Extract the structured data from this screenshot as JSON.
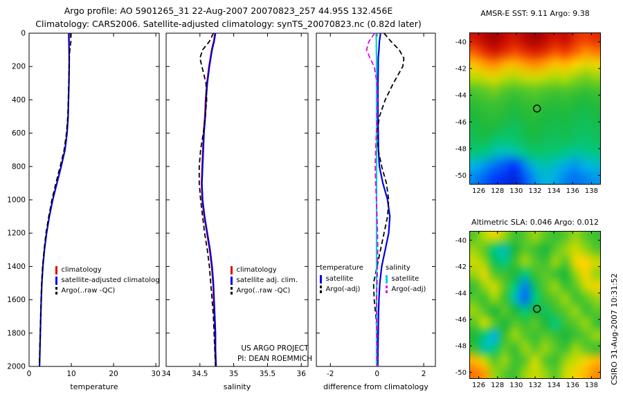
{
  "header": {
    "line1": "Argo profile: AO 5901265_31 22-Aug-2007 20070823_257 44.95S 132.456E",
    "line2": "Climatology: CARS2006. Satellite-adjusted climatology: synTS_20070823.nc (0.82d later)"
  },
  "annotations": {
    "project_line1": "US ARGO PROJECT",
    "project_line2": "PI: DEAN ROEMMICH",
    "timestamp_vertical": "CSIRO 31-Aug-2007 10:31:52"
  },
  "chart_data": [
    {
      "id": "temperature-profile",
      "type": "line",
      "xlabel": "temperature",
      "xlim": [
        0,
        30.8
      ],
      "xticks": [
        0,
        10,
        20,
        30
      ],
      "ylim": [
        0,
        2000
      ],
      "yticks": [
        0,
        200,
        400,
        600,
        800,
        1000,
        1200,
        1400,
        1600,
        1800,
        2000
      ],
      "depths": [
        0,
        50,
        100,
        150,
        200,
        300,
        400,
        500,
        600,
        700,
        800,
        900,
        1000,
        1100,
        1200,
        1300,
        1400,
        1500,
        1600,
        1700,
        1800,
        1900,
        2000
      ],
      "series": [
        {
          "name": "climatology",
          "color": "#e00000",
          "style": "solid",
          "width": 1.5,
          "values": [
            9.3,
            9.35,
            9.4,
            9.45,
            9.45,
            9.4,
            9.3,
            9.2,
            8.95,
            8.45,
            7.55,
            6.55,
            5.55,
            4.75,
            4.1,
            3.6,
            3.25,
            3.0,
            2.85,
            2.75,
            2.65,
            2.55,
            2.45
          ]
        },
        {
          "name": "satellite-adjusted climatology",
          "color": "#0000dd",
          "style": "solid",
          "width": 2.2,
          "values": [
            9.45,
            9.45,
            9.48,
            9.5,
            9.5,
            9.44,
            9.34,
            9.24,
            9.0,
            8.5,
            7.6,
            6.6,
            5.6,
            4.8,
            4.14,
            3.64,
            3.28,
            3.03,
            2.88,
            2.77,
            2.67,
            2.57,
            2.47
          ]
        },
        {
          "name": "Argo raw -QC",
          "color": "#000000",
          "style": "dashed",
          "width": 1.8,
          "values": [
            9.85,
            9.9,
            9.65,
            9.5,
            9.45,
            9.38,
            9.28,
            9.15,
            8.85,
            8.3,
            7.35,
            6.35,
            5.4,
            4.65,
            4.0,
            3.55,
            3.2,
            2.97,
            2.83,
            2.73,
            2.63,
            2.53,
            2.45
          ]
        }
      ],
      "legend": [
        {
          "label": "climatology",
          "color": "#e00000",
          "style": "solid"
        },
        {
          "label": "satellite-adjusted climatology",
          "color": "#0000dd",
          "style": "solid"
        },
        {
          "label": "Argo(..raw -QC)",
          "color": "#000000",
          "style": "dashed"
        }
      ]
    },
    {
      "id": "salinity-profile",
      "type": "line",
      "xlabel": "salinity",
      "xlim": [
        34,
        36.1
      ],
      "xticks": [
        34,
        34.5,
        35,
        35.5,
        36
      ],
      "ylim": [
        0,
        2000
      ],
      "yticks": [
        0,
        200,
        400,
        600,
        800,
        1000,
        1200,
        1400,
        1600,
        1800,
        2000
      ],
      "depths": [
        0,
        50,
        100,
        150,
        200,
        300,
        400,
        500,
        600,
        700,
        800,
        900,
        1000,
        1100,
        1200,
        1300,
        1400,
        1500,
        1600,
        1700,
        1800,
        1900,
        2000
      ],
      "series": [
        {
          "name": "climatology",
          "color": "#e00000",
          "style": "solid",
          "width": 1.5,
          "values": [
            34.72,
            34.7,
            34.67,
            34.65,
            34.63,
            34.6,
            34.58,
            34.57,
            34.55,
            34.54,
            34.53,
            34.52,
            34.53,
            34.56,
            34.6,
            34.64,
            34.67,
            34.69,
            34.7,
            34.71,
            34.72,
            34.72,
            34.73
          ]
        },
        {
          "name": "satellite adj. clim.",
          "color": "#0000dd",
          "style": "solid",
          "width": 2.2,
          "values": [
            34.73,
            34.71,
            34.68,
            34.66,
            34.64,
            34.61,
            34.59,
            34.58,
            34.56,
            34.55,
            34.54,
            34.53,
            34.54,
            34.57,
            34.61,
            34.65,
            34.68,
            34.7,
            34.71,
            34.72,
            34.73,
            34.73,
            34.74
          ]
        },
        {
          "name": "Argo raw -QC",
          "color": "#000000",
          "style": "dashed",
          "width": 1.8,
          "values": [
            34.7,
            34.64,
            34.54,
            34.5,
            34.53,
            34.59,
            34.6,
            34.58,
            34.55,
            34.51,
            34.49,
            34.49,
            34.51,
            34.54,
            34.57,
            34.61,
            34.64,
            34.66,
            34.68,
            34.7,
            34.71,
            34.72,
            34.73
          ]
        }
      ],
      "legend": [
        {
          "label": "climatology",
          "color": "#e00000",
          "style": "solid"
        },
        {
          "label": "satellite adj. clim.",
          "color": "#0000dd",
          "style": "solid"
        },
        {
          "label": "Argo(..raw -QC)",
          "color": "#000000",
          "style": "dashed"
        }
      ]
    },
    {
      "id": "difference-profile",
      "type": "line",
      "xlabel": "difference from climatology",
      "xlim": [
        -2.6,
        2.5
      ],
      "xticks": [
        -2,
        0,
        2
      ],
      "ylim": [
        0,
        2000
      ],
      "yticks": [
        0,
        200,
        400,
        600,
        800,
        1000,
        1200,
        1400,
        1600,
        1800,
        2000
      ],
      "depths": [
        0,
        50,
        100,
        150,
        200,
        300,
        400,
        500,
        600,
        700,
        800,
        900,
        1000,
        1100,
        1200,
        1300,
        1400,
        1500,
        1600,
        1700,
        1800,
        1900,
        2000
      ],
      "series": [
        {
          "name": "temperature satellite",
          "color": "#0000dd",
          "style": "solid",
          "width": 2.2,
          "values": [
            0.15,
            0.1,
            0.08,
            0.05,
            0.05,
            0.04,
            0.04,
            0.04,
            0.05,
            0.06,
            0.1,
            0.25,
            0.45,
            0.55,
            0.5,
            0.35,
            0.2,
            0.12,
            0.08,
            0.06,
            0.05,
            0.04,
            0.03
          ]
        },
        {
          "name": "temperature Argo -adj",
          "color": "#000000",
          "style": "dashed",
          "width": 1.8,
          "values": [
            0.3,
            0.6,
            0.95,
            1.15,
            1.1,
            0.7,
            0.35,
            0.1,
            0.0,
            0.05,
            0.2,
            0.4,
            0.5,
            0.45,
            0.3,
            0.15,
            0.0,
            -0.15,
            -0.12,
            -0.05,
            0.0,
            0.0,
            0.0
          ]
        },
        {
          "name": "salinity satellite",
          "color": "#00ccdd",
          "style": "solid",
          "width": 2.2,
          "values": [
            -0.04,
            -0.03,
            -0.03,
            -0.02,
            -0.02,
            -0.02,
            -0.02,
            -0.02,
            -0.02,
            -0.02,
            -0.02,
            -0.02,
            -0.02,
            -0.02,
            -0.02,
            -0.02,
            -0.02,
            -0.02,
            -0.02,
            -0.02,
            -0.02,
            -0.02,
            -0.02
          ]
        },
        {
          "name": "salinity Argo -adj",
          "color": "#e000e0",
          "style": "dashed",
          "width": 1.8,
          "values": [
            -0.1,
            -0.35,
            -0.45,
            -0.3,
            -0.12,
            0.0,
            0.02,
            0.0,
            -0.03,
            -0.06,
            -0.08,
            -0.06,
            -0.03,
            0.0,
            0.02,
            0.03,
            0.02,
            0.0,
            -0.02,
            -0.02,
            -0.01,
            0.0,
            0.0
          ]
        }
      ],
      "legend": {
        "columns": [
          {
            "header": "temperature",
            "items": [
              {
                "label": "satellite",
                "color": "#0000dd",
                "style": "solid"
              },
              {
                "label": "Argo(-adj)",
                "color": "#000000",
                "style": "dashed"
              }
            ]
          },
          {
            "header": "salinity",
            "items": [
              {
                "label": "satellite",
                "color": "#00ccdd",
                "style": "solid"
              },
              {
                "label": "Argo(-adj)",
                "color": "#e000e0",
                "style": "dashed"
              }
            ]
          }
        ]
      }
    },
    {
      "id": "sst-map",
      "type": "heatmap",
      "title": "AMSR-E SST: 9.11 Argo: 9.38",
      "colormap": "jet",
      "xlim": [
        125,
        139
      ],
      "ylim": [
        -39.3,
        -50.7
      ],
      "xticks": [
        126,
        128,
        130,
        132,
        134,
        136,
        138
      ],
      "yticks": [
        -40,
        -42,
        -44,
        -46,
        -48,
        -50
      ],
      "marker": {
        "lon": 132.2,
        "lat": -45.0
      },
      "grid": [
        [
          0.93,
          0.96,
          0.98,
          0.95,
          0.93,
          0.96,
          0.98,
          0.96,
          0.93,
          0.95,
          0.9,
          0.88,
          0.9
        ],
        [
          0.85,
          0.9,
          0.93,
          0.9,
          0.87,
          0.9,
          0.92,
          0.9,
          0.86,
          0.88,
          0.84,
          0.8,
          0.82
        ],
        [
          0.74,
          0.78,
          0.8,
          0.76,
          0.75,
          0.78,
          0.8,
          0.77,
          0.74,
          0.75,
          0.72,
          0.68,
          0.7
        ],
        [
          0.63,
          0.66,
          0.68,
          0.64,
          0.62,
          0.65,
          0.66,
          0.64,
          0.62,
          0.63,
          0.6,
          0.58,
          0.6
        ],
        [
          0.54,
          0.56,
          0.58,
          0.55,
          0.53,
          0.55,
          0.56,
          0.54,
          0.53,
          0.54,
          0.52,
          0.5,
          0.52
        ],
        [
          0.48,
          0.5,
          0.51,
          0.49,
          0.47,
          0.49,
          0.5,
          0.48,
          0.47,
          0.48,
          0.46,
          0.45,
          0.47
        ],
        [
          0.45,
          0.47,
          0.48,
          0.46,
          0.44,
          0.46,
          0.47,
          0.45,
          0.44,
          0.45,
          0.43,
          0.42,
          0.44
        ],
        [
          0.43,
          0.45,
          0.44,
          0.42,
          0.4,
          0.43,
          0.45,
          0.43,
          0.42,
          0.43,
          0.41,
          0.4,
          0.42
        ],
        [
          0.41,
          0.42,
          0.38,
          0.36,
          0.38,
          0.41,
          0.43,
          0.41,
          0.4,
          0.41,
          0.39,
          0.38,
          0.4
        ],
        [
          0.36,
          0.34,
          0.3,
          0.28,
          0.3,
          0.34,
          0.38,
          0.37,
          0.36,
          0.34,
          0.32,
          0.33,
          0.35
        ],
        [
          0.25,
          0.22,
          0.18,
          0.15,
          0.12,
          0.2,
          0.28,
          0.3,
          0.28,
          0.24,
          0.22,
          0.25,
          0.27
        ],
        [
          0.2,
          0.16,
          0.12,
          0.1,
          0.08,
          0.15,
          0.22,
          0.26,
          0.24,
          0.2,
          0.18,
          0.2,
          0.22
        ]
      ]
    },
    {
      "id": "sla-map",
      "type": "heatmap",
      "title": "Altimetric SLA: 0.046 Argo: 0.012",
      "colormap": "jet",
      "xlim": [
        125,
        139
      ],
      "ylim": [
        -39.3,
        -50.5
      ],
      "xticks": [
        126,
        128,
        130,
        132,
        134,
        136,
        138
      ],
      "yticks": [
        -40,
        -42,
        -44,
        -46,
        -48,
        -50
      ],
      "marker": {
        "lon": 132.2,
        "lat": -45.2
      },
      "grid": [
        [
          0.55,
          0.62,
          0.68,
          0.6,
          0.5,
          0.55,
          0.6,
          0.55,
          0.5,
          0.55,
          0.6,
          0.55,
          0.5
        ],
        [
          0.6,
          0.55,
          0.35,
          0.3,
          0.45,
          0.55,
          0.5,
          0.45,
          0.55,
          0.6,
          0.65,
          0.6,
          0.55
        ],
        [
          0.65,
          0.6,
          0.4,
          0.35,
          0.5,
          0.6,
          0.55,
          0.5,
          0.6,
          0.55,
          0.7,
          0.72,
          0.65
        ],
        [
          0.6,
          0.68,
          0.55,
          0.5,
          0.45,
          0.35,
          0.5,
          0.55,
          0.5,
          0.45,
          0.6,
          0.7,
          0.6
        ],
        [
          0.5,
          0.6,
          0.65,
          0.55,
          0.35,
          0.2,
          0.4,
          0.55,
          0.6,
          0.5,
          0.55,
          0.65,
          0.7
        ],
        [
          0.55,
          0.5,
          0.6,
          0.5,
          0.3,
          0.18,
          0.35,
          0.5,
          0.55,
          0.6,
          0.5,
          0.55,
          0.6
        ],
        [
          0.6,
          0.55,
          0.45,
          0.55,
          0.45,
          0.35,
          0.45,
          0.4,
          0.5,
          0.55,
          0.6,
          0.5,
          0.55
        ],
        [
          0.55,
          0.65,
          0.55,
          0.45,
          0.55,
          0.5,
          0.55,
          0.45,
          0.35,
          0.5,
          0.55,
          0.6,
          0.5
        ],
        [
          0.45,
          0.35,
          0.25,
          0.5,
          0.6,
          0.55,
          0.5,
          0.55,
          0.5,
          0.45,
          0.5,
          0.55,
          0.6
        ],
        [
          0.5,
          0.3,
          0.35,
          0.55,
          0.5,
          0.6,
          0.55,
          0.6,
          0.55,
          0.5,
          0.6,
          0.55,
          0.5
        ],
        [
          0.75,
          0.65,
          0.55,
          0.6,
          0.5,
          0.55,
          0.65,
          0.55,
          0.5,
          0.6,
          0.65,
          0.7,
          0.75
        ],
        [
          0.82,
          0.78,
          0.6,
          0.55,
          0.5,
          0.6,
          0.65,
          0.6,
          0.55,
          0.65,
          0.7,
          0.75,
          0.8
        ]
      ]
    }
  ]
}
